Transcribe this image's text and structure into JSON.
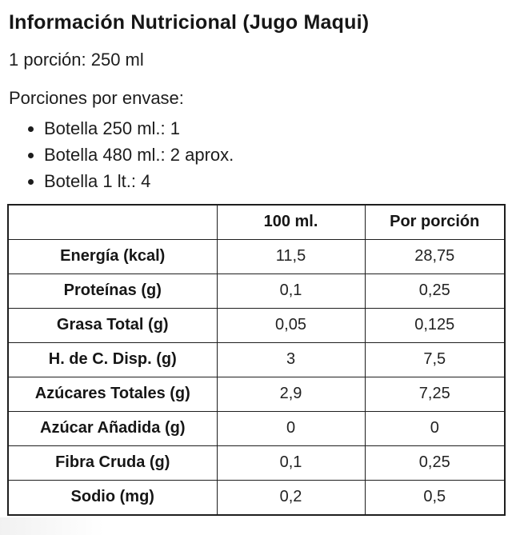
{
  "header": {
    "title": "Información Nutricional (Jugo Maqui)",
    "serving_size": "1 porción: 250 ml",
    "servings_heading": "Porciones por envase:",
    "servings": [
      "Botella 250 ml.: 1",
      "Botella 480 ml.: 2 aprox.",
      "Botella 1 lt.: 4"
    ]
  },
  "table": {
    "column_headers": [
      "",
      "100 ml.",
      "Por porción"
    ],
    "rows": [
      {
        "label": "Energía (kcal)",
        "per_100ml": "11,5",
        "per_portion": "28,75"
      },
      {
        "label": "Proteínas (g)",
        "per_100ml": "0,1",
        "per_portion": "0,25"
      },
      {
        "label": "Grasa Total (g)",
        "per_100ml": "0,05",
        "per_portion": "0,125"
      },
      {
        "label": "H. de C. Disp. (g)",
        "per_100ml": "3",
        "per_portion": "7,5"
      },
      {
        "label": "Azúcares Totales (g)",
        "per_100ml": "2,9",
        "per_portion": "7,25"
      },
      {
        "label": "Azúcar Añadida (g)",
        "per_100ml": "0",
        "per_portion": "0"
      },
      {
        "label": "Fibra Cruda (g)",
        "per_100ml": "0,1",
        "per_portion": "0,25"
      },
      {
        "label": "Sodio (mg)",
        "per_100ml": "0,2",
        "per_portion": "0,5"
      }
    ]
  },
  "colors": {
    "text": "#1c1c1c",
    "border": "#1e1e1e",
    "background": "#ffffff"
  }
}
